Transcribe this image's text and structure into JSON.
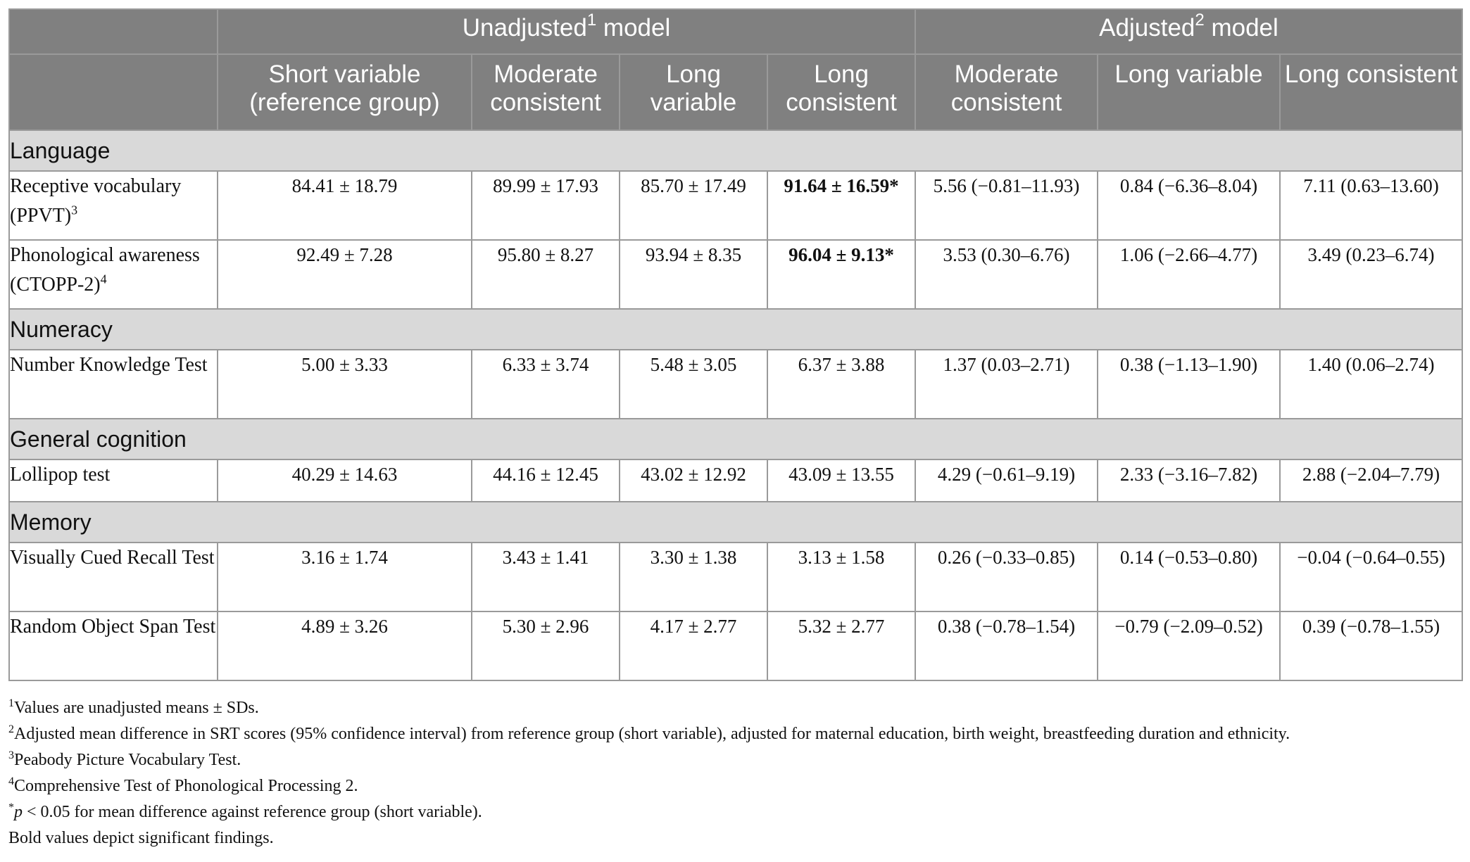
{
  "header": {
    "group1_prefix": "Unadjusted",
    "group1_sup": "1",
    "group1_suffix": " model",
    "group2_prefix": "Adjusted",
    "group2_sup": "2",
    "group2_suffix": " model",
    "columns": [
      "Short variable (reference group)",
      "Moderate consistent",
      "Long variable",
      "Long consistent",
      "Moderate consistent",
      "Long variable",
      "Long consistent"
    ]
  },
  "sections": [
    {
      "title": "Language",
      "rows": [
        {
          "label": "Receptive vocabulary (PPVT)",
          "sup": "3",
          "values": [
            "84.41 ± 18.79",
            "89.99 ± 17.93",
            "85.70 ± 17.49",
            "91.64 ± 16.59*",
            "5.56 (−0.81–11.93)",
            "0.84 (−6.36–8.04)",
            "7.11 (0.63–13.60)"
          ]
        },
        {
          "label": "Phonological awareness (CTOPP-2)",
          "sup": "4",
          "values": [
            "92.49 ± 7.28",
            "95.80 ± 8.27",
            "93.94 ± 8.35",
            "96.04 ± 9.13*",
            "3.53 (0.30–6.76)",
            "1.06 (−2.66–4.77)",
            "3.49 (0.23–6.74)"
          ]
        }
      ]
    },
    {
      "title": "Numeracy",
      "rows": [
        {
          "label": "Number Knowledge Test",
          "sup": "",
          "values": [
            "5.00 ± 3.33",
            "6.33 ± 3.74",
            "5.48 ± 3.05",
            "6.37 ± 3.88",
            "1.37 (0.03–2.71)",
            "0.38 (−1.13–1.90)",
            "1.40 (0.06–2.74)"
          ]
        }
      ]
    },
    {
      "title": "General cognition",
      "rows": [
        {
          "label": "Lollipop test",
          "sup": "",
          "values": [
            "40.29 ± 14.63",
            "44.16 ± 12.45",
            "43.02 ± 12.92",
            "43.09 ± 13.55",
            "4.29 (−0.61–9.19)",
            "2.33 (−3.16–7.82)",
            "2.88 (−2.04–7.79)"
          ]
        }
      ]
    },
    {
      "title": "Memory",
      "rows": [
        {
          "label": "Visually Cued Recall Test",
          "sup": "",
          "values": [
            "3.16 ± 1.74",
            "3.43 ± 1.41",
            "3.30 ± 1.38",
            "3.13 ± 1.58",
            "0.26 (−0.33–0.85)",
            "0.14 (−0.53–0.80)",
            "−0.04 (−0.64–0.55)"
          ]
        },
        {
          "label": "Random Object Span Test",
          "sup": "",
          "values": [
            "4.89 ± 3.26",
            "5.30 ± 2.96",
            "4.17 ± 2.77",
            "5.32 ± 2.77",
            "0.38 (−0.78–1.54)",
            "−0.79 (−2.09–0.52)",
            "0.39 (−0.78–1.55)"
          ]
        }
      ]
    }
  ],
  "footnotes": {
    "n1_mark": "1",
    "n1": "Values are unadjusted means ± SDs.",
    "n2_mark": "2",
    "n2": "Adjusted mean difference in SRT scores (95% confidence interval) from reference group (short variable), adjusted for maternal education, birth weight, breastfeeding duration and ethnicity.",
    "n3_mark": "3",
    "n3": "Peabody Picture Vocabulary Test.",
    "n4_mark": "4",
    "n4": "Comprehensive Test of Phonological Processing 2.",
    "n5_mark": "*",
    "n5_p": "p",
    "n5": " < 0.05 for mean difference against reference group (short variable).",
    "n6": "Bold values depict significant findings."
  }
}
